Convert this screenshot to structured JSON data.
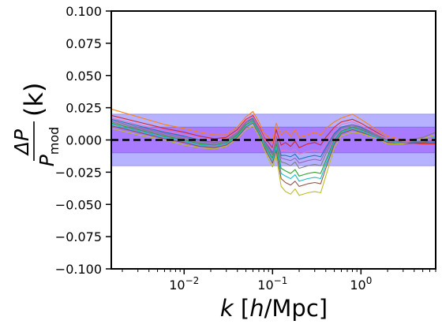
{
  "chart_data": {
    "type": "line",
    "x_scale": "log",
    "xlim": [
      0.0015,
      7
    ],
    "ylim": [
      -0.1,
      0.1
    ],
    "x_ticks": [
      {
        "value": 0.01,
        "label": "10",
        "exp": "−2"
      },
      {
        "value": 0.1,
        "label": "10",
        "exp": "−1"
      },
      {
        "value": 1,
        "label": "10",
        "exp": "0"
      }
    ],
    "y_ticks": [
      {
        "value": 0.1,
        "label": "0.100"
      },
      {
        "value": 0.075,
        "label": "0.075"
      },
      {
        "value": 0.05,
        "label": "0.050"
      },
      {
        "value": 0.025,
        "label": "0.025"
      },
      {
        "value": 0.0,
        "label": "0.000"
      },
      {
        "value": -0.025,
        "label": "−0.025"
      },
      {
        "value": -0.05,
        "label": "−0.050"
      },
      {
        "value": -0.075,
        "label": "−0.075"
      },
      {
        "value": -0.1,
        "label": "−0.100"
      }
    ],
    "xlabel": {
      "pre": "k",
      "mid": " [",
      "h": "h",
      "post": "/Mpc]"
    },
    "ylabel": {
      "num": "ΔP",
      "den": "P",
      "sub": "mod",
      "tail": "(k)"
    },
    "bands": [
      {
        "lo": -0.02,
        "hi": 0.02,
        "color": "#7b72ff",
        "alpha": 0.55
      },
      {
        "lo": -0.01,
        "hi": 0.01,
        "color": "#9b4dff",
        "alpha": 0.55
      }
    ],
    "reference_line": {
      "y": 0.0,
      "style": "dashed",
      "color": "#000000"
    },
    "series_x": [
      0.0015,
      0.003,
      0.006,
      0.01,
      0.015,
      0.022,
      0.03,
      0.04,
      0.05,
      0.06,
      0.07,
      0.08,
      0.09,
      0.1,
      0.11,
      0.125,
      0.14,
      0.16,
      0.18,
      0.2,
      0.25,
      0.3,
      0.35,
      0.4,
      0.5,
      0.6,
      0.8,
      1.0,
      1.5,
      2.0,
      3.0,
      5.0,
      7.0
    ],
    "series": [
      {
        "color": "#ff7f0e",
        "values": [
          0.024,
          0.018,
          0.012,
          0.009,
          0.006,
          0.004,
          0.004,
          0.01,
          0.018,
          0.022,
          0.014,
          0.005,
          0.002,
          -0.002,
          0.013,
          0.004,
          0.007,
          0.003,
          0.008,
          0.002,
          0.004,
          0.006,
          0.004,
          0.009,
          0.014,
          0.017,
          0.02,
          0.016,
          0.008,
          0.003,
          0.0,
          0.0,
          0.001
        ]
      },
      {
        "color": "#d62728",
        "values": [
          0.019,
          0.014,
          0.009,
          0.006,
          0.003,
          0.001,
          0.002,
          0.008,
          0.016,
          0.019,
          0.011,
          0.002,
          -0.002,
          -0.006,
          0.008,
          -0.004,
          -0.002,
          -0.005,
          -0.001,
          -0.006,
          -0.003,
          -0.002,
          -0.004,
          0.002,
          0.01,
          0.014,
          0.016,
          0.013,
          0.006,
          0.001,
          -0.002,
          -0.003,
          -0.003
        ]
      },
      {
        "color": "#1f77b4",
        "values": [
          0.016,
          0.011,
          0.006,
          0.003,
          0.0,
          -0.002,
          0.0,
          0.006,
          0.014,
          0.017,
          0.009,
          0.0,
          -0.005,
          -0.01,
          0.003,
          -0.012,
          -0.012,
          -0.013,
          -0.011,
          -0.015,
          -0.013,
          -0.012,
          -0.013,
          -0.006,
          0.005,
          0.01,
          0.012,
          0.01,
          0.004,
          0.0,
          -0.002,
          -0.002,
          -0.002
        ]
      },
      {
        "color": "#2ca02c",
        "values": [
          0.013,
          0.008,
          0.003,
          0.0,
          -0.003,
          -0.004,
          -0.002,
          0.004,
          0.012,
          0.015,
          0.007,
          -0.003,
          -0.009,
          -0.014,
          -0.003,
          -0.022,
          -0.024,
          -0.026,
          -0.023,
          -0.028,
          -0.026,
          -0.025,
          -0.026,
          -0.016,
          0.0,
          0.007,
          0.01,
          0.008,
          0.003,
          -0.001,
          -0.002,
          -0.001,
          -0.001
        ]
      },
      {
        "color": "#8c564b",
        "values": [
          0.011,
          0.006,
          0.001,
          -0.002,
          -0.005,
          -0.006,
          -0.004,
          0.002,
          0.01,
          0.013,
          0.005,
          -0.005,
          -0.012,
          -0.018,
          -0.008,
          -0.03,
          -0.033,
          -0.035,
          -0.032,
          -0.036,
          -0.034,
          -0.033,
          -0.034,
          -0.022,
          -0.003,
          0.005,
          0.008,
          0.006,
          0.002,
          -0.002,
          -0.003,
          -0.002,
          0.0
        ]
      },
      {
        "color": "#bcbd22",
        "values": [
          0.009,
          0.004,
          0.0,
          -0.004,
          -0.006,
          -0.007,
          -0.005,
          0.001,
          0.008,
          0.011,
          0.003,
          -0.007,
          -0.015,
          -0.021,
          -0.012,
          -0.036,
          -0.04,
          -0.042,
          -0.038,
          -0.043,
          -0.041,
          -0.04,
          -0.041,
          -0.028,
          -0.006,
          0.003,
          0.006,
          0.005,
          0.001,
          -0.003,
          -0.003,
          0.001,
          0.004
        ]
      },
      {
        "color": "#17becf",
        "values": [
          0.012,
          0.007,
          0.002,
          -0.001,
          -0.004,
          -0.005,
          -0.003,
          0.003,
          0.011,
          0.014,
          0.006,
          -0.004,
          -0.01,
          -0.016,
          -0.005,
          -0.026,
          -0.028,
          -0.03,
          -0.027,
          -0.032,
          -0.03,
          -0.029,
          -0.03,
          -0.019,
          -0.001,
          0.006,
          0.009,
          0.007,
          0.002,
          -0.001,
          -0.002,
          0.0,
          0.002
        ]
      },
      {
        "color": "#7f7f7f",
        "values": [
          0.014,
          0.009,
          0.004,
          0.001,
          -0.002,
          -0.003,
          -0.001,
          0.005,
          0.013,
          0.016,
          0.008,
          -0.002,
          -0.007,
          -0.012,
          0.0,
          -0.017,
          -0.018,
          -0.02,
          -0.017,
          -0.022,
          -0.02,
          -0.019,
          -0.02,
          -0.011,
          0.003,
          0.009,
          0.011,
          0.009,
          0.004,
          0.0,
          -0.001,
          0.002,
          0.006
        ]
      },
      {
        "color": "#e377c2",
        "values": [
          0.017,
          0.012,
          0.007,
          0.004,
          0.001,
          -0.001,
          0.001,
          0.007,
          0.015,
          0.018,
          0.01,
          0.001,
          -0.004,
          -0.008,
          0.005,
          -0.008,
          -0.008,
          -0.009,
          -0.007,
          -0.011,
          -0.009,
          -0.008,
          -0.009,
          -0.003,
          0.007,
          0.012,
          0.014,
          0.011,
          0.005,
          0.001,
          -0.001,
          0.0,
          0.001
        ]
      },
      {
        "color": "#9467bd",
        "values": [
          0.015,
          0.01,
          0.005,
          0.002,
          -0.001,
          -0.002,
          0.0,
          0.006,
          0.014,
          0.016,
          0.009,
          -0.001,
          -0.006,
          -0.011,
          0.002,
          -0.014,
          -0.015,
          -0.016,
          -0.014,
          -0.018,
          -0.016,
          -0.015,
          -0.016,
          -0.008,
          0.004,
          0.009,
          0.012,
          0.009,
          0.003,
          0.0,
          -0.002,
          -0.001,
          -0.001
        ]
      }
    ]
  }
}
